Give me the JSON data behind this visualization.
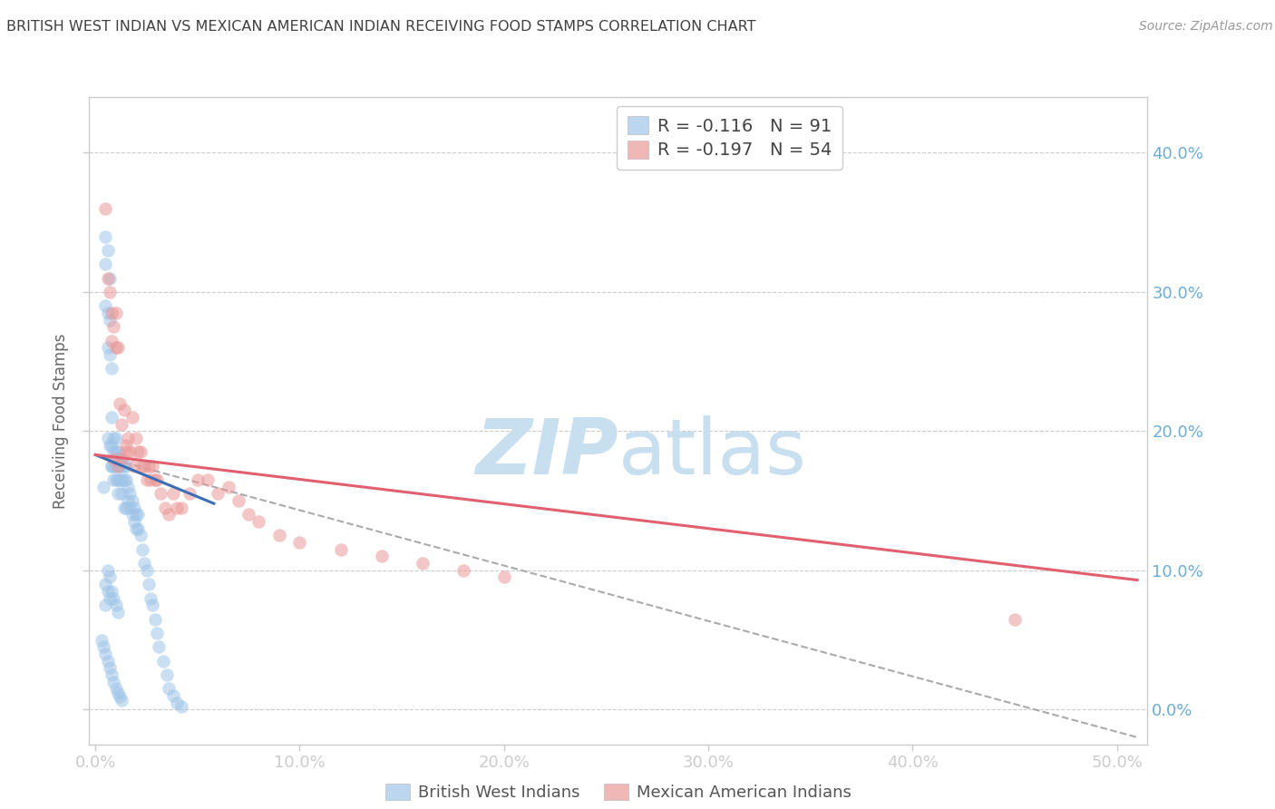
{
  "title": "BRITISH WEST INDIAN VS MEXICAN AMERICAN INDIAN RECEIVING FOOD STAMPS CORRELATION CHART",
  "source": "Source: ZipAtlas.com",
  "ylabel": "Receiving Food Stamps",
  "blue_R": -0.116,
  "blue_N": 91,
  "pink_R": -0.197,
  "pink_N": 54,
  "blue_color": "#9fc5e8",
  "pink_color": "#ea9999",
  "trendline_blue_color": "#3d6eb5",
  "trendline_pink_color": "#e06070",
  "trendline_dashed_color": "#aaaaaa",
  "grid_color": "#cccccc",
  "axis_color": "#cccccc",
  "tick_color": "#6baed6",
  "right_tick_color": "#6baed6",
  "title_color": "#404040",
  "source_color": "#999999",
  "watermark_zip_color": "#c8dff0",
  "watermark_atlas_color": "#c8dff0",
  "legend_label_blue": "British West Indians",
  "legend_label_pink": "Mexican American Indians",
  "xlim": [
    -0.003,
    0.515
  ],
  "ylim": [
    -0.025,
    0.44
  ],
  "xtick_vals": [
    0.0,
    0.1,
    0.2,
    0.3,
    0.4,
    0.5
  ],
  "ytick_vals": [
    0.0,
    0.1,
    0.2,
    0.3,
    0.4
  ],
  "blue_x": [
    0.004,
    0.005,
    0.005,
    0.005,
    0.006,
    0.006,
    0.006,
    0.006,
    0.007,
    0.007,
    0.007,
    0.007,
    0.008,
    0.008,
    0.008,
    0.008,
    0.008,
    0.009,
    0.009,
    0.009,
    0.009,
    0.01,
    0.01,
    0.01,
    0.01,
    0.01,
    0.011,
    0.011,
    0.011,
    0.011,
    0.012,
    0.012,
    0.012,
    0.013,
    0.013,
    0.013,
    0.014,
    0.014,
    0.014,
    0.015,
    0.015,
    0.015,
    0.016,
    0.016,
    0.017,
    0.017,
    0.018,
    0.018,
    0.019,
    0.019,
    0.02,
    0.02,
    0.021,
    0.021,
    0.022,
    0.023,
    0.024,
    0.025,
    0.026,
    0.027,
    0.028,
    0.029,
    0.03,
    0.031,
    0.033,
    0.035,
    0.036,
    0.038,
    0.04,
    0.042,
    0.005,
    0.005,
    0.006,
    0.006,
    0.007,
    0.007,
    0.008,
    0.009,
    0.01,
    0.011,
    0.003,
    0.004,
    0.005,
    0.006,
    0.007,
    0.008,
    0.009,
    0.01,
    0.011,
    0.012,
    0.013
  ],
  "blue_y": [
    0.16,
    0.34,
    0.32,
    0.29,
    0.33,
    0.285,
    0.26,
    0.195,
    0.31,
    0.28,
    0.255,
    0.19,
    0.175,
    0.19,
    0.21,
    0.245,
    0.175,
    0.185,
    0.195,
    0.175,
    0.165,
    0.175,
    0.185,
    0.195,
    0.18,
    0.165,
    0.175,
    0.185,
    0.165,
    0.155,
    0.175,
    0.165,
    0.18,
    0.165,
    0.175,
    0.155,
    0.145,
    0.165,
    0.175,
    0.145,
    0.165,
    0.175,
    0.15,
    0.16,
    0.145,
    0.155,
    0.14,
    0.15,
    0.135,
    0.145,
    0.13,
    0.14,
    0.13,
    0.14,
    0.125,
    0.115,
    0.105,
    0.1,
    0.09,
    0.08,
    0.075,
    0.065,
    0.055,
    0.045,
    0.035,
    0.025,
    0.015,
    0.01,
    0.005,
    0.002,
    0.09,
    0.075,
    0.1,
    0.085,
    0.095,
    0.08,
    0.085,
    0.08,
    0.075,
    0.07,
    0.05,
    0.045,
    0.04,
    0.035,
    0.03,
    0.025,
    0.02,
    0.015,
    0.012,
    0.009,
    0.007
  ],
  "pink_x": [
    0.005,
    0.006,
    0.007,
    0.008,
    0.008,
    0.009,
    0.01,
    0.01,
    0.011,
    0.012,
    0.013,
    0.014,
    0.015,
    0.016,
    0.017,
    0.018,
    0.019,
    0.02,
    0.021,
    0.022,
    0.023,
    0.024,
    0.025,
    0.026,
    0.027,
    0.028,
    0.029,
    0.03,
    0.032,
    0.034,
    0.036,
    0.038,
    0.04,
    0.042,
    0.046,
    0.05,
    0.055,
    0.06,
    0.065,
    0.07,
    0.075,
    0.08,
    0.09,
    0.1,
    0.12,
    0.14,
    0.16,
    0.18,
    0.2,
    0.45,
    0.009,
    0.011,
    0.013,
    0.015
  ],
  "pink_y": [
    0.36,
    0.31,
    0.3,
    0.285,
    0.265,
    0.275,
    0.285,
    0.26,
    0.26,
    0.22,
    0.205,
    0.215,
    0.19,
    0.195,
    0.185,
    0.21,
    0.175,
    0.195,
    0.185,
    0.185,
    0.175,
    0.175,
    0.165,
    0.175,
    0.165,
    0.175,
    0.165,
    0.165,
    0.155,
    0.145,
    0.14,
    0.155,
    0.145,
    0.145,
    0.155,
    0.165,
    0.165,
    0.155,
    0.16,
    0.15,
    0.14,
    0.135,
    0.125,
    0.12,
    0.115,
    0.11,
    0.105,
    0.1,
    0.095,
    0.065,
    0.18,
    0.175,
    0.18,
    0.185
  ],
  "blue_trend_x": [
    0.0,
    0.058
  ],
  "blue_trend_y": [
    0.183,
    0.148
  ],
  "pink_trend_x": [
    0.0,
    0.51
  ],
  "pink_trend_y": [
    0.183,
    0.093
  ],
  "dash_trend_x": [
    0.0,
    0.51
  ],
  "dash_trend_y": [
    0.183,
    -0.02
  ]
}
